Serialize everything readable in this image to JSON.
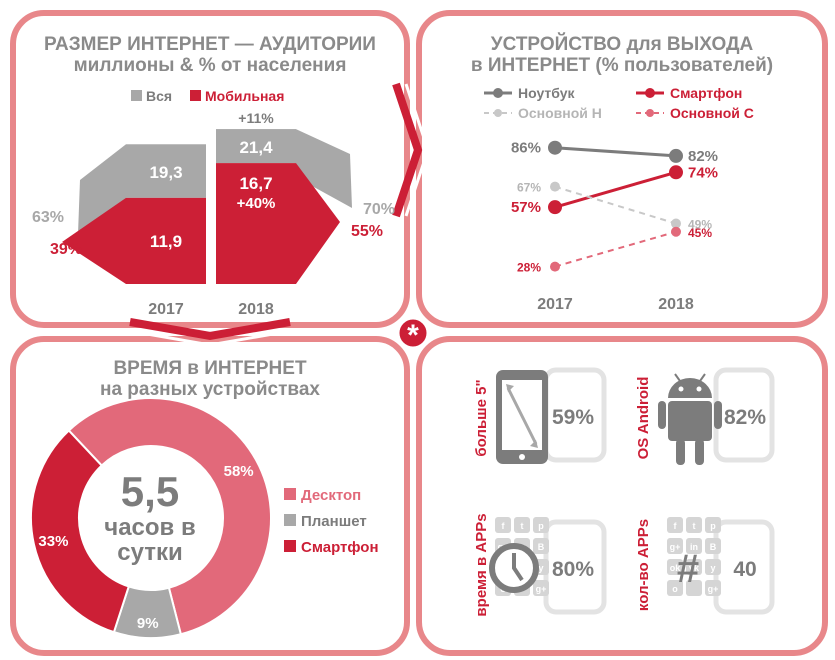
{
  "colors": {
    "red": "#cc1f36",
    "gray": "#a8a8a8",
    "pink": "#e2697a",
    "frame": "#e8878a",
    "darkgray": "#7c7c7c"
  },
  "panel_audience": {
    "title_line1": "РАЗМЕР ИНТЕРНЕТ — АУДИТОРИИ",
    "title_line2": "миллионы  &  % от населения"
  },
  "panel_devices": {
    "title_line1": "УСТРОЙСТВО для ВЫХОДА",
    "title_line2": "в ИНТЕРНЕТ (% пользователей)"
  },
  "panel_time": {
    "title_line1": "ВРЕМЯ в ИНТЕРНЕТ",
    "title_line2": "на разных устройствах",
    "center_number": "5,5",
    "center_line1": "часов в",
    "center_line2": "сутки"
  },
  "star_icon": "asterisk-icon",
  "chart_data": [
    {
      "type": "bar",
      "categories": [
        "2017",
        "2018"
      ],
      "legend": [
        "Вся",
        "Мобильная"
      ],
      "series": [
        {
          "name": "Вся",
          "values": [
            19.3,
            21.4
          ],
          "labels": [
            "19,3",
            "21,4"
          ]
        },
        {
          "name": "Мобильная",
          "values": [
            11.9,
            16.7
          ],
          "labels": [
            "11,9",
            "16,7"
          ]
        }
      ],
      "growth_labels": {
        "Вся": "+11%",
        "Мобильная": "+40%"
      },
      "population_share": {
        "2017": {
          "Вся": "63%",
          "Мобильная": "39%"
        },
        "2018": {
          "Вся": "70%",
          "Мобильная": "55%"
        }
      }
    },
    {
      "type": "line",
      "categories": [
        "2017",
        "2018"
      ],
      "series": [
        {
          "name": "Ноутбук",
          "values": [
            86,
            82
          ],
          "labels": [
            "86%",
            "82%"
          ],
          "style": "solid",
          "color": "#7c7c7c"
        },
        {
          "name": "Смартфон",
          "values": [
            57,
            74
          ],
          "labels": [
            "57%",
            "74%"
          ],
          "style": "solid",
          "color": "#cc1f36"
        },
        {
          "name": "Основной Н",
          "values": [
            67,
            49
          ],
          "labels": [
            "67%",
            "49%"
          ],
          "style": "dashed",
          "color": "#c8c8c8"
        },
        {
          "name": "Основной С",
          "values": [
            28,
            45
          ],
          "labels": [
            "28%",
            "45%"
          ],
          "style": "dashed",
          "color": "#e2697a"
        }
      ]
    },
    {
      "type": "pie",
      "slices": [
        {
          "name": "Десктоп",
          "value": 58,
          "label": "58%",
          "color": "#e2697a"
        },
        {
          "name": "Планшет",
          "value": 9,
          "label": "9%",
          "color": "#a8a8a8"
        },
        {
          "name": "Смартфон",
          "value": 33,
          "label": "33%",
          "color": "#cc1f36"
        }
      ]
    }
  ],
  "stats": [
    {
      "caption": "больше 5\"",
      "value": "59%",
      "icon": "smartphone-icon"
    },
    {
      "caption": "OS Android",
      "value": "82%",
      "icon": "android-icon"
    },
    {
      "caption": "время в APPs",
      "value": "80%",
      "icon": "clock-icon"
    },
    {
      "caption": "кол-во APPs",
      "value": "40",
      "icon": "hashtag-icon"
    }
  ],
  "app_glyphs": [
    "f",
    "t",
    "p",
    "g+",
    "in",
    "B",
    "ok",
    "vk",
    "y",
    "o",
    "",
    "g+"
  ]
}
